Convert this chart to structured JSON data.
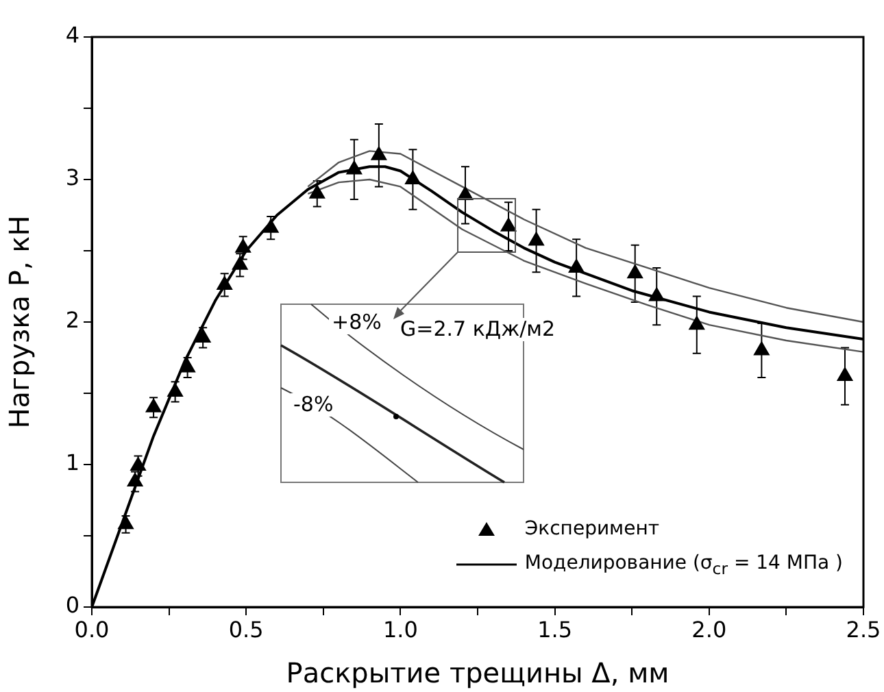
{
  "chart_data": {
    "type": "scatter",
    "xlabel": "Раскрытие трещины Δ, мм",
    "ylabel": "Нагрузка P, кН",
    "xlim": [
      0,
      2.5
    ],
    "ylim": [
      0,
      4
    ],
    "xticks": [
      {
        "value": 0,
        "label": "0.0"
      },
      {
        "value": 0.25,
        "label": null
      },
      {
        "value": 0.5,
        "label": "0.5"
      },
      {
        "value": 0.75,
        "label": null
      },
      {
        "value": 1,
        "label": "1.0"
      },
      {
        "value": 1.25,
        "label": null
      },
      {
        "value": 1.5,
        "label": "1.5"
      },
      {
        "value": 1.75,
        "label": null
      },
      {
        "value": 2,
        "label": "2.0"
      },
      {
        "value": 2.25,
        "label": null
      },
      {
        "value": 2.5,
        "label": "2.5"
      }
    ],
    "yticks": [
      0,
      {
        "value": 0.5,
        "label": null
      },
      1,
      {
        "value": 1.5,
        "label": null
      },
      2,
      {
        "value": 2.5,
        "label": null
      },
      3,
      {
        "value": 3.5,
        "label": null
      },
      4
    ],
    "grid": false,
    "legend": "bottom right",
    "annotations": [
      "+8%",
      "-8%",
      "G=2.7 кДж/м2"
    ],
    "series": [
      {
        "name": "Эксперимент",
        "type": "scatter",
        "color": "#000000",
        "marker": "triangle",
        "x": [
          0.11,
          0.14,
          0.15,
          0.2,
          0.27,
          0.31,
          0.36,
          0.43,
          0.48,
          0.49,
          0.58,
          0.73,
          0.85,
          0.93,
          1.04,
          1.21,
          1.35,
          1.44,
          1.57,
          1.76,
          1.83,
          1.96,
          2.17,
          2.44
        ],
        "values": [
          0.58,
          0.88,
          0.99,
          1.4,
          1.51,
          1.68,
          1.89,
          2.26,
          2.4,
          2.52,
          2.66,
          2.9,
          3.07,
          3.17,
          3.0,
          2.89,
          2.67,
          2.57,
          2.38,
          2.34,
          2.18,
          1.98,
          1.8,
          1.62
        ],
        "errors": [
          0.06,
          0.07,
          0.07,
          0.07,
          0.07,
          0.07,
          0.07,
          0.08,
          0.08,
          0.08,
          0.08,
          0.09,
          0.21,
          0.22,
          0.21,
          0.2,
          0.17,
          0.22,
          0.2,
          0.2,
          0.2,
          0.2,
          0.19,
          0.2
        ]
      },
      {
        "name": "Моделирование (σ$_{cr}$ = 14 МПа )",
        "type": "line",
        "color": "#000000",
        "marker": "none",
        "x": [
          0,
          0.1,
          0.2,
          0.3,
          0.4,
          0.5,
          0.6,
          0.7,
          0.8,
          0.9,
          0.95,
          1.0,
          1.1,
          1.2,
          1.3,
          1.4,
          1.5,
          1.75,
          2.0,
          2.25,
          2.5
        ],
        "values": [
          0,
          0.6,
          1.2,
          1.72,
          2.15,
          2.5,
          2.75,
          2.93,
          3.05,
          3.09,
          3.09,
          3.06,
          2.92,
          2.77,
          2.64,
          2.52,
          2.42,
          2.22,
          2.07,
          1.96,
          1.88
        ]
      },
      {
        "type": "line",
        "color": "#555555",
        "marker": "none",
        "x": [
          0.7,
          0.8,
          0.9,
          1.0,
          1.2,
          1.4,
          1.6,
          1.8,
          2.0,
          2.25,
          2.5
        ],
        "values": [
          2.95,
          3.12,
          3.2,
          3.18,
          2.95,
          2.72,
          2.52,
          2.38,
          2.24,
          2.1,
          2.0
        ]
      },
      {
        "type": "line",
        "color": "#555555",
        "marker": "none",
        "x": [
          0.7,
          0.8,
          0.9,
          1.0,
          1.2,
          1.4,
          1.6,
          1.8,
          2.0,
          2.25,
          2.5
        ],
        "values": [
          2.9,
          2.98,
          3.0,
          2.95,
          2.65,
          2.43,
          2.27,
          2.12,
          1.98,
          1.87,
          1.79
        ]
      }
    ]
  }
}
